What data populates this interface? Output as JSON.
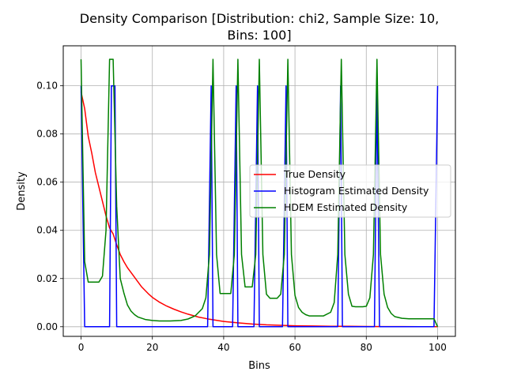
{
  "chart_data": {
    "type": "line",
    "title_line1": "Density Comparison [Distribution: chi2, Sample Size: 10,",
    "title_line2": "Bins: 100]",
    "xlabel": "Bins",
    "ylabel": "Density",
    "xlim": [
      -5,
      105
    ],
    "ylim": [
      -0.004,
      0.1166
    ],
    "x_ticks": [
      0,
      20,
      40,
      60,
      80,
      100
    ],
    "x_tick_labels": [
      "0",
      "20",
      "40",
      "60",
      "80",
      "100"
    ],
    "y_ticks": [
      0.0,
      0.02,
      0.04,
      0.06,
      0.08,
      0.1
    ],
    "y_tick_labels": [
      "0.00",
      "0.02",
      "0.04",
      "0.06",
      "0.08",
      "0.10"
    ],
    "grid": true,
    "legend_position": "center-right",
    "series": [
      {
        "name": "True Density",
        "color": "#ff0000",
        "x": [
          0,
          1,
          2,
          3,
          4,
          5,
          6,
          7,
          8,
          9,
          10,
          11,
          12,
          13,
          14,
          15,
          16,
          17,
          18,
          19,
          20,
          22,
          24,
          26,
          28,
          30,
          33,
          36,
          40,
          44,
          48,
          52,
          56,
          60,
          65,
          70,
          75,
          80,
          85,
          90,
          95,
          100
        ],
        "values": [
          0.0975,
          0.0905,
          0.079,
          0.072,
          0.064,
          0.058,
          0.052,
          0.046,
          0.041,
          0.0385,
          0.034,
          0.03,
          0.027,
          0.0245,
          0.0225,
          0.0205,
          0.0185,
          0.0165,
          0.015,
          0.0135,
          0.0122,
          0.0102,
          0.0086,
          0.0073,
          0.0062,
          0.0052,
          0.004,
          0.0031,
          0.0022,
          0.0016,
          0.0011,
          0.0008,
          0.0006,
          0.0004,
          0.0003,
          0.0002,
          0.00015,
          0.0001,
          8e-05,
          5e-05,
          3e-05,
          2e-05
        ]
      },
      {
        "name": "Histogram Estimated Density",
        "color": "#0000ff",
        "x": [
          0,
          1,
          8,
          9,
          10,
          36,
          37,
          43,
          44,
          49,
          50,
          57,
          58,
          72,
          73,
          83,
          84,
          99,
          100
        ],
        "values": [
          0.1,
          0.0,
          0.0,
          0.1,
          0.1,
          0.0,
          0.1,
          0.0,
          0.1,
          0.0,
          0.1,
          0.0,
          0.1,
          0.0,
          0.1,
          0.0,
          0.1,
          0.0,
          0.1
        ],
        "drop_points": [
          [
            1,
            0.0
          ],
          [
            8,
            0.0
          ],
          [
            10,
            0.0
          ],
          [
            36,
            0.0
          ],
          [
            37,
            0.0
          ],
          [
            43,
            0.0
          ],
          [
            44,
            0.0
          ],
          [
            49,
            0.0
          ],
          [
            50,
            0.0
          ],
          [
            57,
            0.0
          ],
          [
            58,
            0.0
          ],
          [
            72,
            0.0
          ],
          [
            73,
            0.0
          ],
          [
            83,
            0.0
          ],
          [
            84,
            0.0
          ],
          [
            99,
            0.0
          ]
        ]
      },
      {
        "name": "HDEM Estimated Density",
        "color": "#008000",
        "x": [
          0,
          1,
          2,
          3,
          4,
          5,
          6,
          7,
          8,
          9,
          10,
          11,
          12,
          13,
          14,
          15,
          16,
          18,
          20,
          22,
          25,
          28,
          30,
          32,
          34,
          35,
          36,
          37,
          38,
          39,
          40,
          41,
          42,
          43,
          44,
          45,
          46,
          47,
          48,
          49,
          50,
          51,
          52,
          53,
          54,
          55,
          56,
          57,
          58,
          59,
          60,
          61,
          62,
          63,
          64,
          66,
          68,
          70,
          71,
          72,
          73,
          74,
          75,
          76,
          77,
          78,
          79,
          80,
          81,
          82,
          83,
          84,
          85,
          86,
          87,
          88,
          90,
          92,
          95,
          98,
          99,
          100
        ],
        "values": [
          0.111,
          0.027,
          0.0185,
          0.0185,
          0.0185,
          0.0185,
          0.021,
          0.04,
          0.111,
          0.111,
          0.05,
          0.02,
          0.014,
          0.009,
          0.0065,
          0.005,
          0.004,
          0.003,
          0.0026,
          0.0024,
          0.0024,
          0.0026,
          0.0032,
          0.0045,
          0.0075,
          0.012,
          0.03,
          0.111,
          0.03,
          0.0138,
          0.0138,
          0.0138,
          0.0138,
          0.03,
          0.111,
          0.03,
          0.0165,
          0.0165,
          0.0165,
          0.03,
          0.111,
          0.03,
          0.0135,
          0.0118,
          0.0118,
          0.0118,
          0.0135,
          0.03,
          0.111,
          0.03,
          0.013,
          0.008,
          0.006,
          0.005,
          0.0045,
          0.0045,
          0.0045,
          0.006,
          0.01,
          0.03,
          0.111,
          0.03,
          0.0135,
          0.0085,
          0.0083,
          0.0083,
          0.0083,
          0.0085,
          0.012,
          0.03,
          0.111,
          0.03,
          0.0135,
          0.008,
          0.0055,
          0.0042,
          0.0035,
          0.0033,
          0.0033,
          0.0033,
          0.0033,
          0.0
        ]
      }
    ]
  }
}
